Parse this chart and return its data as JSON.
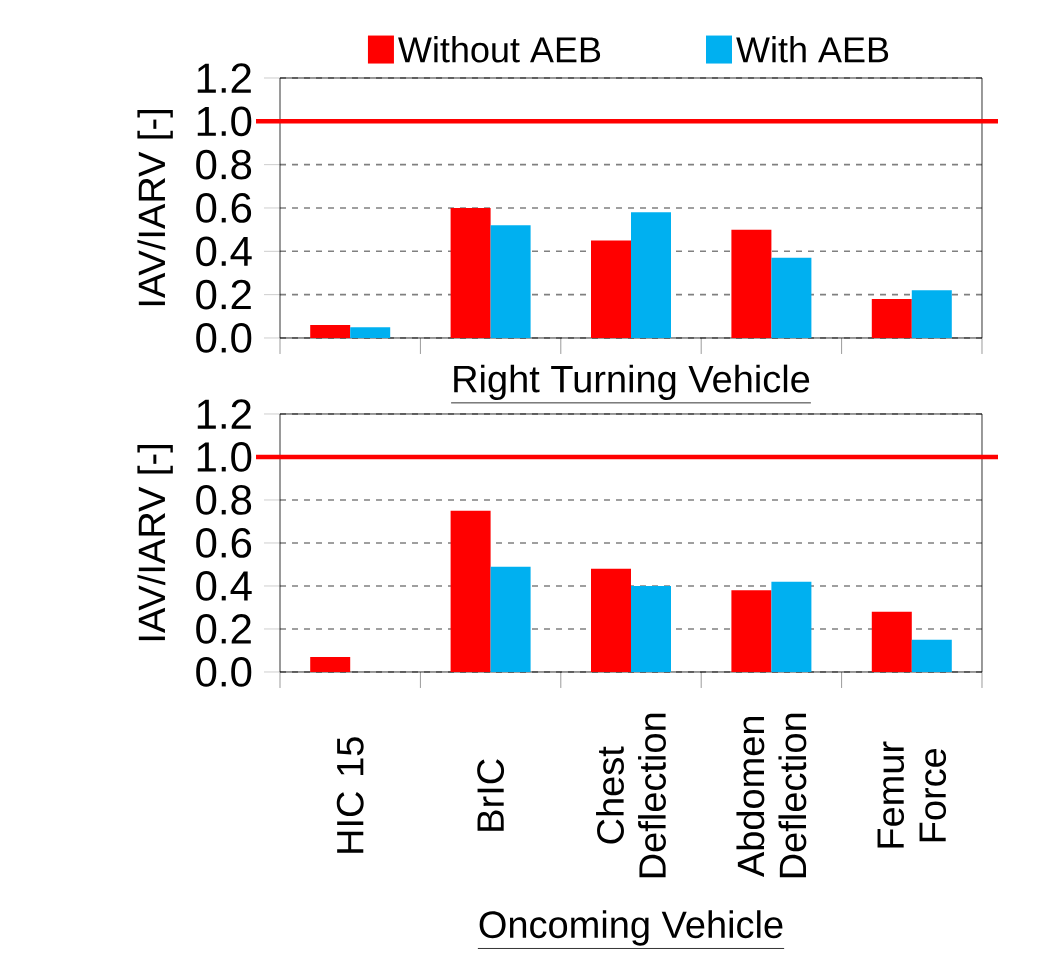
{
  "chart_data": [
    {
      "type": "bar",
      "xlabel": "Right Turning Vehicle",
      "ylabel": "IAV/IARV [-]",
      "categories": [
        null,
        null,
        null,
        null,
        null
      ],
      "series": [
        {
          "name": "Without AEB",
          "color": "#ff0000",
          "values": [
            0.06,
            0.6,
            0.45,
            0.5,
            0.18
          ]
        },
        {
          "name": "With AEB",
          "color": "#00b0f0",
          "values": [
            0.05,
            0.52,
            0.58,
            0.37,
            0.22
          ]
        }
      ],
      "ylim": [
        0,
        1.2
      ],
      "yticks": [
        {
          "value": 0,
          "label": "0.0"
        },
        {
          "value": 0.2,
          "label": "0.2"
        },
        {
          "value": 0.4,
          "label": "0.4"
        },
        {
          "value": 0.6,
          "label": "0.6"
        },
        {
          "value": 0.8,
          "label": "0.8"
        },
        {
          "value": 1.0,
          "label": "1.0"
        },
        {
          "value": 1.2,
          "label": "1.2"
        }
      ],
      "ref_lines": [
        {
          "axis": "y",
          "value": 1.0,
          "color": "#ff0000"
        }
      ],
      "grid": "y",
      "legend": "top",
      "tick_labels": "y"
    },
    {
      "type": "bar",
      "xlabel": "Oncoming Vehicle",
      "ylabel": "IAV/IARV [-]",
      "categories": [
        "HIC 15",
        "BrIC",
        "Chest Deflection",
        "Abdomen Deflection",
        "Femur Force"
      ],
      "series": [
        {
          "color": "#ff0000",
          "values": [
            0.07,
            0.75,
            0.48,
            0.38,
            0.28
          ]
        },
        {
          "color": "#00b0f0",
          "values": [
            null,
            0.49,
            0.4,
            0.42,
            0.15
          ]
        }
      ],
      "ylim": [
        0,
        1.2
      ],
      "yticks": [
        {
          "value": 0,
          "label": "0.0"
        },
        {
          "value": 0.2,
          "label": "0.2"
        },
        {
          "value": 0.4,
          "label": "0.4"
        },
        {
          "value": 0.6,
          "label": "0.6"
        },
        {
          "value": 0.8,
          "label": "0.8"
        },
        {
          "value": 1.0,
          "label": "1.0"
        },
        {
          "value": 1.2,
          "label": "1.2"
        }
      ],
      "ref_lines": [
        {
          "axis": "y",
          "value": 1.0,
          "color": "#ff0000"
        }
      ],
      "grid": "y"
    }
  ]
}
